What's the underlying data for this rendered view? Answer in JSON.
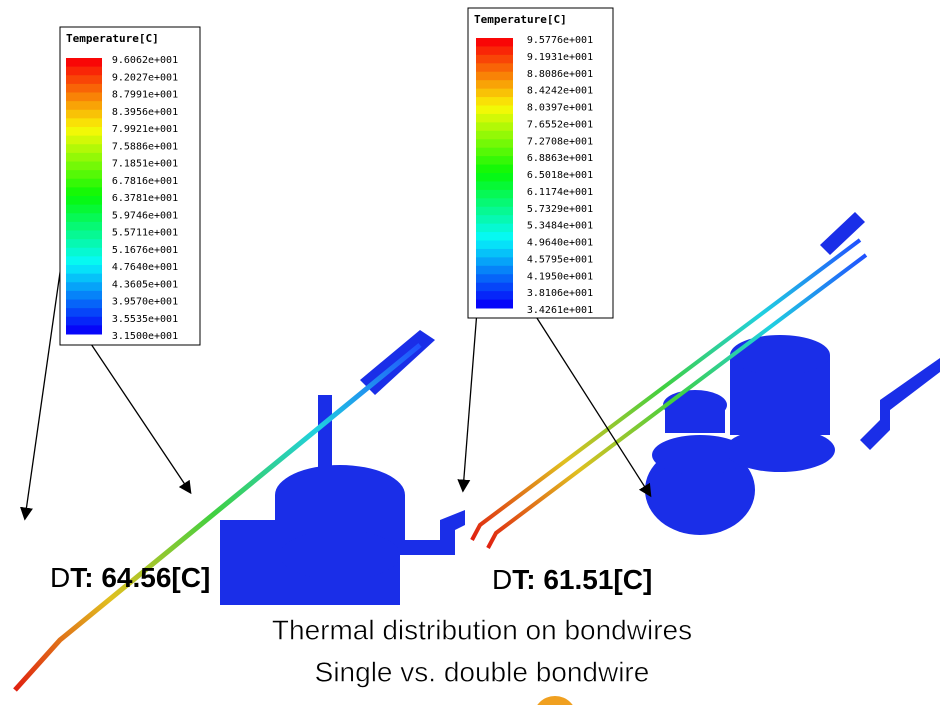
{
  "legends": [
    {
      "title": "Temperature[C]",
      "labels": [
        "9.6062e+001",
        "9.2027e+001",
        "8.7991e+001",
        "8.3956e+001",
        "7.9921e+001",
        "7.5886e+001",
        "7.1851e+001",
        "6.7816e+001",
        "6.3781e+001",
        "5.9746e+001",
        "5.5711e+001",
        "5.1676e+001",
        "4.7640e+001",
        "4.3605e+001",
        "3.9570e+001",
        "3.5535e+001",
        "3.1500e+001"
      ]
    },
    {
      "title": "Temperature[C]",
      "labels": [
        "9.5776e+001",
        "9.1931e+001",
        "8.8086e+001",
        "8.4242e+001",
        "8.0397e+001",
        "7.6552e+001",
        "7.2708e+001",
        "6.8863e+001",
        "6.5018e+001",
        "6.1174e+001",
        "5.7329e+001",
        "5.3484e+001",
        "4.9640e+001",
        "4.5795e+001",
        "4.1950e+001",
        "3.8106e+001",
        "3.4261e+001"
      ]
    }
  ],
  "delta_labels": [
    {
      "symbol": "D",
      "text": "T: 64.56[C]"
    },
    {
      "symbol": "D",
      "text": "T: 61.51[C]"
    }
  ],
  "caption": [
    "Thermal distribution on bondwires",
    "Single vs. double bondwire"
  ]
}
